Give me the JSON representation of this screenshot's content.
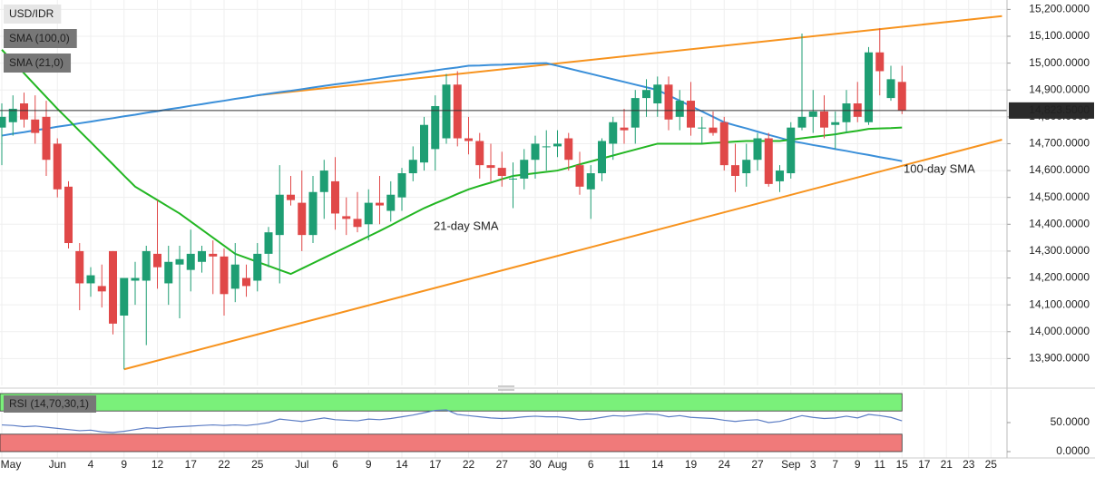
{
  "chart_data": [
    {
      "type": "candlestick",
      "categories": [
        "May",
        null,
        null,
        null,
        null,
        "Jun",
        null,
        null,
        "4",
        null,
        null,
        "9",
        null,
        null,
        "12",
        null,
        null,
        "17",
        null,
        null,
        "22",
        null,
        null,
        "25",
        null,
        null,
        null,
        "Jul",
        null,
        null,
        "6",
        null,
        null,
        "9",
        null,
        null,
        "14",
        null,
        null,
        "17",
        null,
        null,
        "22",
        null,
        null,
        "27",
        null,
        null,
        "30",
        null,
        "Aug",
        null,
        null,
        "6",
        null,
        null,
        "11",
        null,
        null,
        "14",
        null,
        null,
        "19",
        null,
        null,
        "24",
        null,
        null,
        "27",
        null,
        null,
        "Sep",
        null,
        "3",
        null,
        "7",
        null,
        "9",
        null,
        "11",
        null,
        "15",
        null,
        "17",
        null,
        "21",
        null,
        "23",
        null,
        "25"
      ],
      "ohlc": {
        "name": "USD/IDR",
        "up_color": "#1e9e73",
        "down_color": "#e04848",
        "open": [
          14760,
          14780,
          14850,
          14790,
          14800,
          14700,
          14540,
          14300,
          14180,
          14170,
          14300,
          14060,
          14190,
          14190,
          14290,
          14180,
          14250,
          14230,
          14260,
          14290,
          14280,
          14160,
          14200,
          14190,
          14290,
          14360,
          14510,
          14480,
          14360,
          14520,
          14560,
          14430,
          14420,
          14400,
          14480,
          14450,
          14500,
          14590,
          14630,
          14680,
          14720,
          14920,
          14720,
          14710,
          14620,
          14610,
          14570,
          14570,
          14640,
          14690,
          14690,
          14720,
          14620,
          14530,
          14590,
          14700,
          14760,
          14760,
          14870,
          14850,
          14920,
          14800,
          14860,
          14760,
          14760,
          14780,
          14620,
          14590,
          14640,
          14720,
          14560,
          14590,
          14760,
          14800,
          14820,
          14770,
          14780,
          14850,
          14780,
          15040,
          14870,
          14930,
          null,
          null,
          null,
          null,
          null,
          null,
          null,
          null
        ],
        "high": [
          14850,
          14880,
          14890,
          14880,
          14860,
          14720,
          14560,
          14330,
          14240,
          14250,
          14300,
          14200,
          14260,
          14320,
          14490,
          14320,
          14320,
          14380,
          14320,
          14340,
          14310,
          14330,
          14250,
          14330,
          14390,
          14620,
          14580,
          14600,
          14580,
          14640,
          14650,
          14500,
          14520,
          14530,
          14580,
          14560,
          14610,
          14690,
          14800,
          14880,
          14960,
          14970,
          14800,
          14740,
          14700,
          14670,
          14630,
          14680,
          14730,
          14750,
          14750,
          14740,
          14670,
          14620,
          14720,
          14800,
          14830,
          14900,
          14940,
          14950,
          14950,
          14900,
          14930,
          14800,
          14820,
          14800,
          14700,
          14700,
          14740,
          14740,
          14620,
          14780,
          15110,
          14900,
          14880,
          14820,
          14900,
          14930,
          15060,
          15130,
          14990,
          14990,
          null,
          null,
          null,
          null,
          null,
          null,
          null,
          null
        ],
        "low": [
          14620,
          14730,
          14760,
          14700,
          14580,
          14500,
          14310,
          14080,
          14130,
          14090,
          13990,
          13860,
          14100,
          13950,
          14160,
          14100,
          14050,
          14150,
          14220,
          14140,
          14060,
          14110,
          14130,
          14150,
          14240,
          14180,
          14470,
          14300,
          14330,
          14420,
          14380,
          14360,
          14370,
          14340,
          14400,
          14410,
          14450,
          14560,
          14600,
          14600,
          14700,
          14690,
          14660,
          14570,
          14560,
          14540,
          14460,
          14530,
          14570,
          14600,
          14650,
          14600,
          14510,
          14420,
          14560,
          14640,
          14700,
          14700,
          14800,
          14800,
          14750,
          14750,
          14730,
          14700,
          14730,
          14600,
          14520,
          14540,
          14600,
          14540,
          14520,
          14570,
          14750,
          14740,
          14720,
          14680,
          14740,
          14780,
          14770,
          14880,
          14860,
          14810,
          null,
          null,
          null,
          null,
          null,
          null,
          null,
          null
        ],
        "close": [
          14800,
          14830,
          14790,
          14740,
          14640,
          14530,
          14330,
          14180,
          14210,
          14150,
          14030,
          14200,
          14200,
          14300,
          14240,
          14260,
          14270,
          14290,
          14300,
          14280,
          14140,
          14250,
          14170,
          14290,
          14370,
          14510,
          14490,
          14360,
          14520,
          14600,
          14440,
          14420,
          14390,
          14480,
          14470,
          14510,
          14590,
          14640,
          14770,
          14840,
          14920,
          14720,
          14710,
          14620,
          14610,
          14580,
          14570,
          14640,
          14700,
          14690,
          14700,
          14640,
          14540,
          14590,
          14710,
          14780,
          14750,
          14870,
          14900,
          14920,
          14790,
          14860,
          14760,
          14760,
          14740,
          14620,
          14580,
          14640,
          14720,
          14550,
          14600,
          14760,
          14800,
          14820,
          14760,
          14780,
          14850,
          14800,
          15040,
          14970,
          14940,
          14823.5,
          null,
          null,
          null,
          null,
          null,
          null,
          null,
          null
        ]
      },
      "series": [
        {
          "name": "SMA (100,0)",
          "label": "100-day SMA",
          "color": "#3a8fd9",
          "values": [
            14730,
            14737,
            14743,
            14750,
            14756,
            14763,
            14769,
            14776,
            14782,
            14789,
            14795,
            14802,
            14808,
            14815,
            14821,
            14828,
            14834,
            14841,
            14847,
            14854,
            14860,
            14867,
            14873,
            14880,
            14886,
            14892,
            14897,
            14903,
            14909,
            14915,
            14921,
            14926,
            14932,
            14938,
            14944,
            14950,
            14955,
            14961,
            14967,
            14973,
            14979,
            14984,
            14990,
            14991,
            14993,
            14994,
            14996,
            14997,
            14999,
            15000,
            14990,
            14980,
            14970,
            14960,
            14950,
            14940,
            14930,
            14920,
            14910,
            14900,
            14880,
            14860,
            14840,
            14820,
            14800,
            14780,
            14768,
            14757,
            14745,
            14733,
            14722,
            14710,
            14703,
            14695,
            14688,
            14680,
            14673,
            14665,
            14658,
            14650,
            14643,
            14635,
            null,
            null,
            null,
            null,
            null,
            null,
            null,
            null
          ]
        },
        {
          "name": "SMA (21,0)",
          "label": "21-day SMA",
          "color": "#22b622",
          "values": [
            15050,
            15006,
            14962,
            14918,
            14874,
            14830,
            14789,
            14747,
            14706,
            14664,
            14623,
            14581,
            14540,
            14515,
            14490,
            14465,
            14440,
            14410,
            14380,
            14350,
            14320,
            14290,
            14275,
            14260,
            14245,
            14230,
            14215,
            14235,
            14255,
            14275,
            14295,
            14315,
            14335,
            14355,
            14375,
            14396,
            14418,
            14439,
            14460,
            14478,
            14495,
            14513,
            14530,
            14543,
            14555,
            14568,
            14580,
            14585,
            14590,
            14595,
            14600,
            14611,
            14623,
            14634,
            14645,
            14656,
            14667,
            14678,
            14689,
            14700,
            14700,
            14700,
            14700,
            14700,
            14703,
            14705,
            14708,
            14710,
            14710,
            14710,
            14710,
            14715,
            14720,
            14725,
            14730,
            14735,
            14742,
            14748,
            14755,
            14757,
            14758,
            14760,
            null,
            null,
            null,
            null,
            null,
            null,
            null,
            null
          ]
        }
      ],
      "trendlines": [
        {
          "color": "#f7931e",
          "points": [
            [
              11,
              13860
            ],
            [
              90,
              14715
            ]
          ]
        },
        {
          "color": "#f7931e",
          "points": [
            [
              23,
              14880
            ],
            [
              90,
              15175
            ]
          ]
        }
      ],
      "last_price": {
        "value": 14823.5,
        "label": "14,823.5000"
      },
      "ylim": [
        13800,
        15235
      ],
      "yticks": [
        {
          "value": 13900,
          "label": "13,900.0000"
        },
        {
          "value": 14000,
          "label": "14,000.0000"
        },
        {
          "value": 14100,
          "label": "14,100.0000"
        },
        {
          "value": 14200,
          "label": "14,200.0000"
        },
        {
          "value": 14300,
          "label": "14,300.0000"
        },
        {
          "value": 14400,
          "label": "14,400.0000"
        },
        {
          "value": 14500,
          "label": "14,500.0000"
        },
        {
          "value": 14600,
          "label": "14,600.0000"
        },
        {
          "value": 14700,
          "label": "14,700.0000"
        },
        {
          "value": 14800,
          "label": "14,800.0000"
        },
        {
          "value": 14900,
          "label": "14,900.0000"
        },
        {
          "value": 15000,
          "label": "15,000.0000"
        },
        {
          "value": 15100,
          "label": "15,100.0000"
        },
        {
          "value": 15200,
          "label": "15,200.0000"
        }
      ],
      "grid": true
    },
    {
      "type": "line",
      "series": [
        {
          "name": "RSI (14,70,30,1)",
          "color": "#5b7cc4",
          "values": [
            46,
            45,
            43,
            44,
            42,
            40,
            38,
            36,
            37,
            34,
            33,
            35,
            38,
            41,
            40,
            42,
            43,
            44,
            45,
            46,
            45,
            46,
            45,
            47,
            50,
            56,
            54,
            52,
            55,
            58,
            55,
            54,
            53,
            56,
            55,
            57,
            60,
            63,
            67,
            71,
            72,
            64,
            62,
            60,
            58,
            57,
            58,
            60,
            61,
            60,
            60,
            58,
            55,
            56,
            59,
            62,
            61,
            63,
            65,
            64,
            60,
            62,
            59,
            58,
            57,
            54,
            52,
            54,
            55,
            50,
            52,
            57,
            62,
            59,
            57,
            58,
            61,
            58,
            64,
            62,
            59,
            53,
            null,
            null,
            null,
            null,
            null,
            null,
            null,
            null
          ]
        }
      ],
      "bands": [
        {
          "from": 70,
          "to": 100,
          "color": "#7af07a"
        },
        {
          "from": 0,
          "to": 30,
          "color": "#f07a7a"
        }
      ],
      "ylim": [
        0,
        100
      ],
      "yticks": [
        {
          "value": 0,
          "label": "0.0000"
        },
        {
          "value": 50,
          "label": "50.0000"
        }
      ]
    }
  ]
}
